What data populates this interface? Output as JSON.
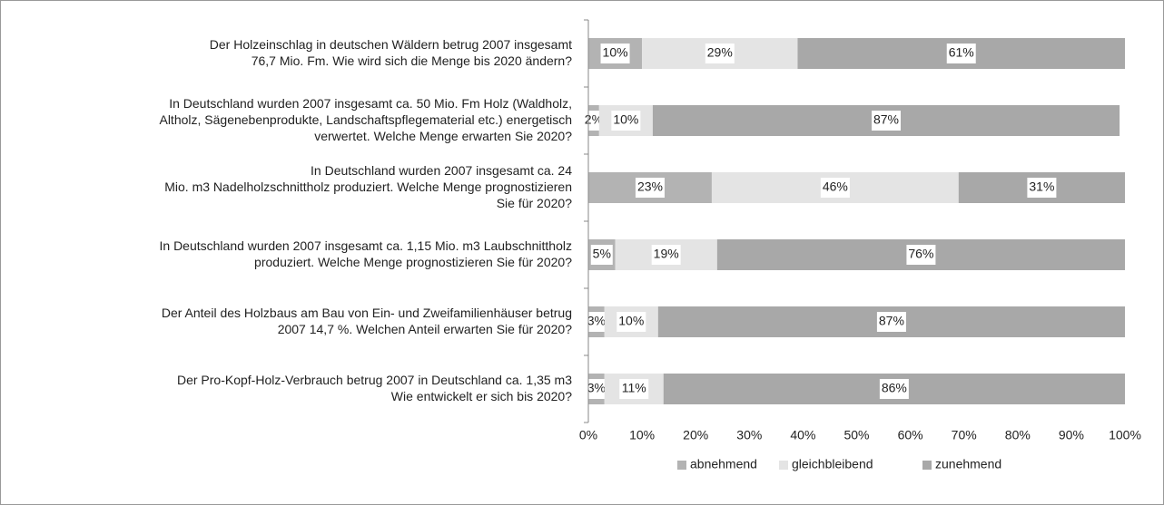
{
  "chart_data": {
    "type": "stacked_bar_horizontal",
    "categories": [
      "Der Holzeinschlag in deutschen Wäldern betrug 2007 insgesamt\n76,7 Mio. Fm. Wie wird sich die Menge bis 2020 ändern?",
      "In Deutschland wurden 2007 insgesamt ca. 50 Mio. Fm Holz (Waldholz,\nAltholz, Sägenebenprodukte, Landschaftspflegematerial etc.) energetisch\nverwertet. Welche Menge erwarten Sie 2020?",
      "In Deutschland wurden 2007 insgesamt ca. 24\nMio. m3 Nadelholzschnittholz produziert. Welche Menge prognostizieren\nSie für 2020?",
      "In Deutschland wurden 2007 insgesamt ca. 1,15 Mio. m3 Laubschnittholz\nproduziert. Welche Menge prognostizieren Sie für 2020?",
      "Der Anteil des Holzbaus am Bau von Ein- und Zweifamilienhäuser betrug\n2007 14,7 %. Welchen Anteil erwarten Sie für 2020?",
      "Der Pro-Kopf-Holz-Verbrauch betrug 2007 in Deutschland ca. 1,35 m3\nWie entwickelt er sich bis 2020?"
    ],
    "series": [
      {
        "name": "abnehmend",
        "color": "#b3b3b3",
        "values": [
          10,
          2,
          23,
          5,
          3,
          3
        ],
        "value_labels": [
          "10%",
          "2%",
          "23%",
          "5%",
          "3%",
          "3%"
        ]
      },
      {
        "name": "gleichbleibend",
        "color": "#e4e4e4",
        "values": [
          29,
          10,
          46,
          19,
          10,
          11
        ],
        "value_labels": [
          "29%",
          "10%",
          "46%",
          "19%",
          "10%",
          "11%"
        ]
      },
      {
        "name": "zunehmend",
        "color": "#a8a8a8",
        "values": [
          61,
          87,
          31,
          76,
          87,
          86
        ],
        "value_labels": [
          "61%",
          "87%",
          "31%",
          "76%",
          "87%",
          "86%"
        ]
      }
    ],
    "xlim": [
      0,
      100
    ],
    "xticks": [
      {
        "value": 0,
        "label": "0%"
      },
      {
        "value": 10,
        "label": "10%"
      },
      {
        "value": 20,
        "label": "20%"
      },
      {
        "value": 30,
        "label": "30%"
      },
      {
        "value": 40,
        "label": "40%"
      },
      {
        "value": 50,
        "label": "50%"
      },
      {
        "value": 60,
        "label": "60%"
      },
      {
        "value": 70,
        "label": "70%"
      },
      {
        "value": 80,
        "label": "80%"
      },
      {
        "value": 90,
        "label": "90%"
      },
      {
        "value": 100,
        "label": "100%"
      }
    ],
    "legend": "bottom"
  }
}
